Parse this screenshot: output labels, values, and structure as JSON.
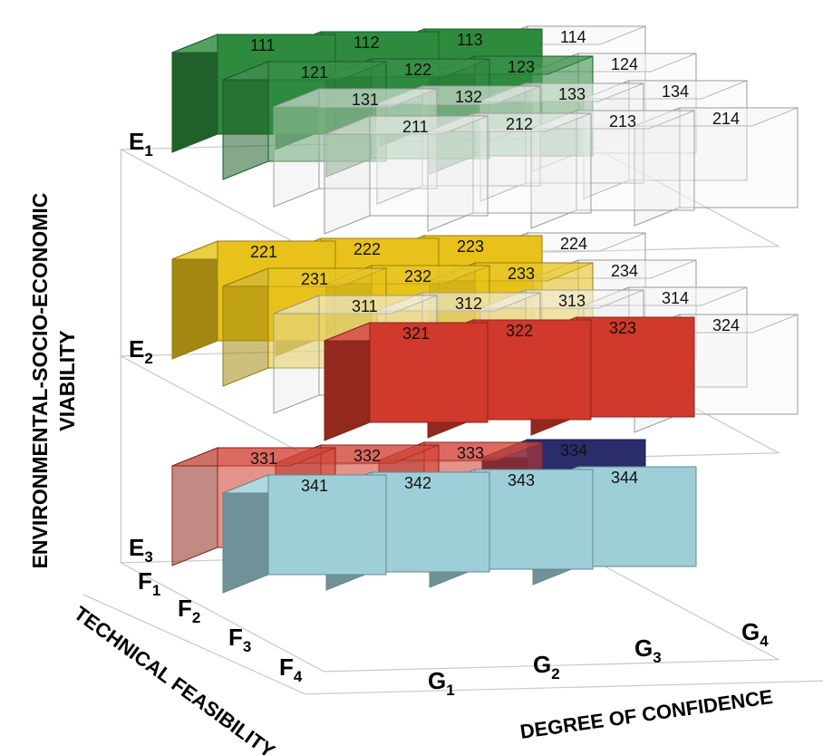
{
  "axes": {
    "vertical_title_line1": "ENVIRONMENTAL-SOCIO-ECONOMIC",
    "vertical_title_line2": "VIABILITY",
    "depth_title": "TECHNICAL FEASIBILITY",
    "horizontal_title": "DEGREE OF CONFIDENCE"
  },
  "e_levels": [
    {
      "main": "E",
      "sub": "1"
    },
    {
      "main": "E",
      "sub": "2"
    },
    {
      "main": "E",
      "sub": "3"
    }
  ],
  "f_levels": [
    {
      "main": "F",
      "sub": "1"
    },
    {
      "main": "F",
      "sub": "2"
    },
    {
      "main": "F",
      "sub": "3"
    },
    {
      "main": "F",
      "sub": "4"
    }
  ],
  "g_levels": [
    {
      "main": "G",
      "sub": "1"
    },
    {
      "main": "G",
      "sub": "2"
    },
    {
      "main": "G",
      "sub": "3"
    },
    {
      "main": "G",
      "sub": "4"
    }
  ],
  "colors": {
    "green": "#2e8b3e",
    "yellow": "#e8c21a",
    "red": "#d0392b",
    "navy": "#2a2d6a",
    "cyan": "#9ecfd8",
    "empty": "#ececec"
  },
  "cells": [
    {
      "label": "111",
      "color": "green",
      "alpha": 1.0
    },
    {
      "label": "112",
      "color": "green",
      "alpha": 1.0
    },
    {
      "label": "113",
      "color": "green",
      "alpha": 1.0
    },
    {
      "label": "114",
      "color": "empty",
      "alpha": 0.18
    },
    {
      "label": "121",
      "color": "green",
      "alpha": 0.55
    },
    {
      "label": "122",
      "color": "green",
      "alpha": 0.55
    },
    {
      "label": "123",
      "color": "green",
      "alpha": 0.55
    },
    {
      "label": "124",
      "color": "empty",
      "alpha": 0.18
    },
    {
      "label": "131",
      "color": "empty",
      "alpha": 0.18
    },
    {
      "label": "132",
      "color": "empty",
      "alpha": 0.18
    },
    {
      "label": "133",
      "color": "empty",
      "alpha": 0.18
    },
    {
      "label": "134",
      "color": "empty",
      "alpha": 0.18
    },
    {
      "label": "211",
      "color": "empty",
      "alpha": 0.18
    },
    {
      "label": "212",
      "color": "empty",
      "alpha": 0.18
    },
    {
      "label": "213",
      "color": "empty",
      "alpha": 0.18
    },
    {
      "label": "214",
      "color": "empty",
      "alpha": 0.18
    },
    {
      "label": "221",
      "color": "yellow",
      "alpha": 1.0
    },
    {
      "label": "222",
      "color": "yellow",
      "alpha": 1.0
    },
    {
      "label": "223",
      "color": "yellow",
      "alpha": 1.0
    },
    {
      "label": "224",
      "color": "empty",
      "alpha": 0.18
    },
    {
      "label": "231",
      "color": "yellow",
      "alpha": 0.55
    },
    {
      "label": "232",
      "color": "yellow",
      "alpha": 0.55
    },
    {
      "label": "233",
      "color": "yellow",
      "alpha": 0.55
    },
    {
      "label": "234",
      "color": "empty",
      "alpha": 0.18
    },
    {
      "label": "311",
      "color": "empty",
      "alpha": 0.18
    },
    {
      "label": "312",
      "color": "empty",
      "alpha": 0.18
    },
    {
      "label": "313",
      "color": "empty",
      "alpha": 0.18
    },
    {
      "label": "314",
      "color": "empty",
      "alpha": 0.18
    },
    {
      "label": "321",
      "color": "red",
      "alpha": 1.0
    },
    {
      "label": "322",
      "color": "red",
      "alpha": 1.0
    },
    {
      "label": "323",
      "color": "red",
      "alpha": 1.0
    },
    {
      "label": "324",
      "color": "empty",
      "alpha": 0.18
    },
    {
      "label": "331",
      "color": "red",
      "alpha": 0.55
    },
    {
      "label": "332",
      "color": "red",
      "alpha": 0.55
    },
    {
      "label": "333",
      "color": "red",
      "alpha": 0.55
    },
    {
      "label": "334",
      "color": "navy",
      "alpha": 1.0
    },
    {
      "label": "341",
      "color": "cyan",
      "alpha": 1.0
    },
    {
      "label": "342",
      "color": "cyan",
      "alpha": 1.0
    },
    {
      "label": "343",
      "color": "cyan",
      "alpha": 1.0
    },
    {
      "label": "344",
      "color": "cyan",
      "alpha": 1.0
    }
  ]
}
